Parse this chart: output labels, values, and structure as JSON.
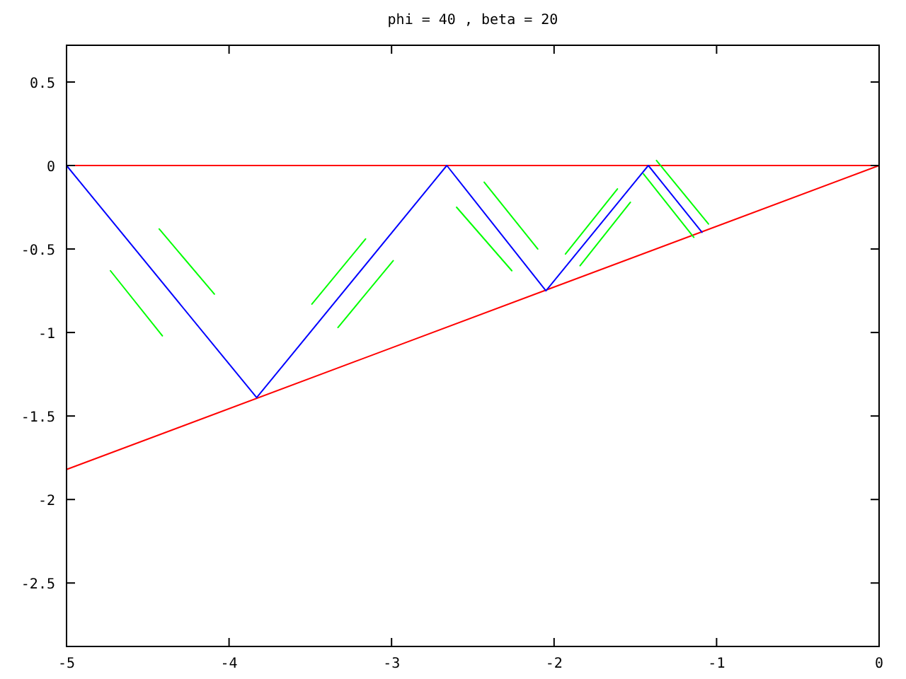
{
  "chart_data": {
    "type": "line",
    "title": "phi = 40 , beta = 20",
    "xlim": [
      -5,
      0
    ],
    "ylim": [
      -2.88,
      0.72
    ],
    "xticks": [
      -5,
      -4,
      -3,
      -2,
      -1,
      0
    ],
    "yticks": [
      0.5,
      0,
      -0.5,
      -1,
      -1.5,
      -2,
      -2.5
    ],
    "marker": "none",
    "line_style": "solid",
    "series": [
      {
        "color": "#ff0000",
        "x": [
          -5,
          0
        ],
        "values": [
          0,
          0
        ]
      },
      {
        "color": "#ff0000",
        "x": [
          -5,
          0
        ],
        "values": [
          -1.82,
          0
        ]
      },
      {
        "color": "#0000ff",
        "x": [
          -5,
          -3.83,
          -2.66,
          -2.05,
          -1.42,
          -1.09
        ],
        "values": [
          0,
          -1.39,
          0,
          -0.75,
          0,
          -0.4
        ]
      },
      {
        "color": "#00ff00",
        "x": [
          -4.73,
          -4.41
        ],
        "values": [
          -0.63,
          -1.02
        ]
      },
      {
        "color": "#00ff00",
        "x": [
          -4.43,
          -4.09
        ],
        "values": [
          -0.38,
          -0.77
        ]
      },
      {
        "color": "#00ff00",
        "x": [
          -3.49,
          -3.16
        ],
        "values": [
          -0.83,
          -0.44
        ]
      },
      {
        "color": "#00ff00",
        "x": [
          -3.33,
          -2.99
        ],
        "values": [
          -0.97,
          -0.57
        ]
      },
      {
        "color": "#00ff00",
        "x": [
          -2.6,
          -2.26
        ],
        "values": [
          -0.25,
          -0.63
        ]
      },
      {
        "color": "#00ff00",
        "x": [
          -2.43,
          -2.1
        ],
        "values": [
          -0.1,
          -0.5
        ]
      },
      {
        "color": "#00ff00",
        "x": [
          -1.93,
          -1.61
        ],
        "values": [
          -0.53,
          -0.14
        ]
      },
      {
        "color": "#00ff00",
        "x": [
          -1.84,
          -1.53
        ],
        "values": [
          -0.6,
          -0.22
        ]
      },
      {
        "color": "#00ff00",
        "x": [
          -1.45,
          -1.14
        ],
        "values": [
          -0.05,
          -0.43
        ]
      },
      {
        "color": "#00ff00",
        "x": [
          -1.37,
          -1.05
        ],
        "values": [
          0.03,
          -0.35
        ]
      }
    ]
  }
}
